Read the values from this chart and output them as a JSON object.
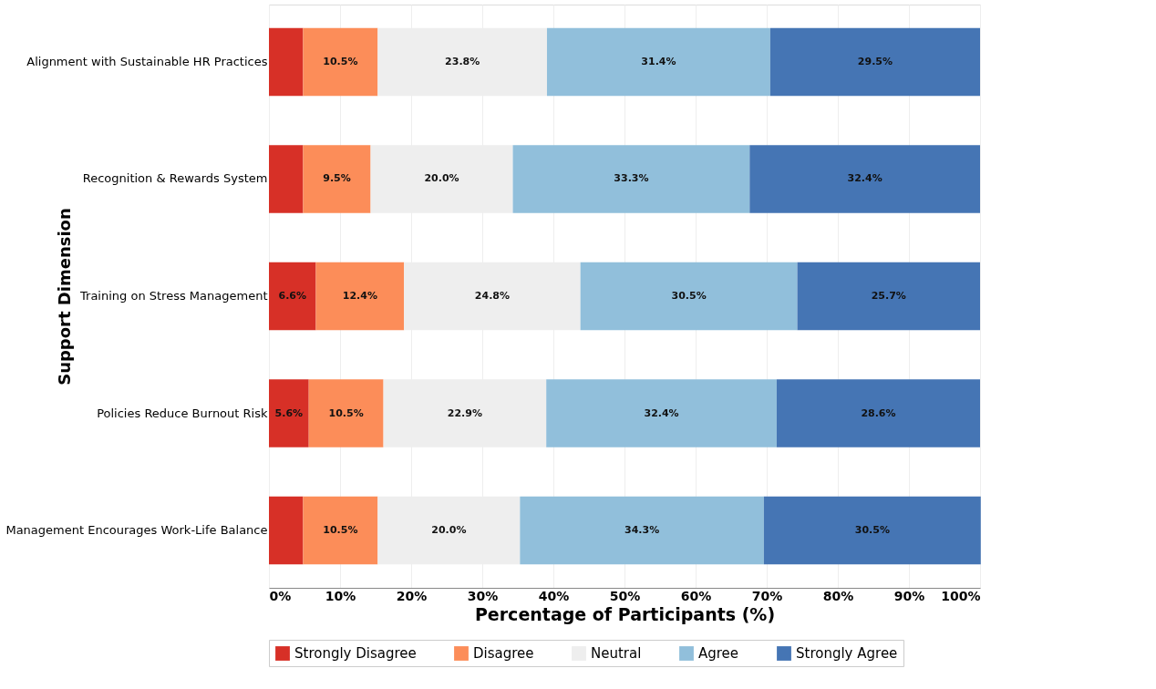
{
  "chart_data": {
    "type": "bar",
    "orientation": "horizontal",
    "stacked": true,
    "xlabel": "Percentage of Participants (%)",
    "ylabel": "Support Dimension",
    "categories": [
      "Alignment with Sustainable HR Practices",
      "Recognition & Rewards System",
      "Training on Stress Management",
      "Policies Reduce Burnout Risk",
      "Management Encourages Work-Life Balance"
    ],
    "series": [
      {
        "name": "Strongly Disagree",
        "color": "#d73027",
        "values": [
          4.8,
          4.8,
          6.6,
          5.6,
          4.8
        ],
        "value_labels": [
          null,
          null,
          "6.6%",
          "5.6%",
          null
        ]
      },
      {
        "name": "Disagree",
        "color": "#fc8d59",
        "values": [
          10.5,
          9.5,
          12.4,
          10.5,
          10.5
        ],
        "value_labels": [
          "10.5%",
          "9.5%",
          "12.4%",
          "10.5%",
          "10.5%"
        ]
      },
      {
        "name": "Neutral",
        "color": "#eeeeee",
        "values": [
          23.8,
          20.0,
          24.8,
          22.9,
          20.0
        ],
        "value_labels": [
          "23.8%",
          "20.0%",
          "24.8%",
          "22.9%",
          "20.0%"
        ]
      },
      {
        "name": "Agree",
        "color": "#91bfdb",
        "values": [
          31.4,
          33.3,
          30.5,
          32.4,
          34.3
        ],
        "value_labels": [
          "31.4%",
          "33.3%",
          "30.5%",
          "32.4%",
          "34.3%"
        ]
      },
      {
        "name": "Strongly Agree",
        "color": "#4575b4",
        "values": [
          29.5,
          32.4,
          25.7,
          28.6,
          30.5
        ],
        "value_labels": [
          "29.5%",
          "32.4%",
          "25.7%",
          "28.6%",
          "30.5%"
        ]
      }
    ],
    "xlim": [
      0,
      100
    ],
    "xticks": [
      {
        "value": 0,
        "label": "0%"
      },
      {
        "value": 10,
        "label": "10%"
      },
      {
        "value": 20,
        "label": "20%"
      },
      {
        "value": 30,
        "label": "30%"
      },
      {
        "value": 40,
        "label": "40%"
      },
      {
        "value": 50,
        "label": "50%"
      },
      {
        "value": 60,
        "label": "60%"
      },
      {
        "value": 70,
        "label": "70%"
      },
      {
        "value": 80,
        "label": "80%"
      },
      {
        "value": 90,
        "label": "90%"
      },
      {
        "value": 100,
        "label": "100%"
      }
    ],
    "grid": "x",
    "legend": "bottom"
  }
}
